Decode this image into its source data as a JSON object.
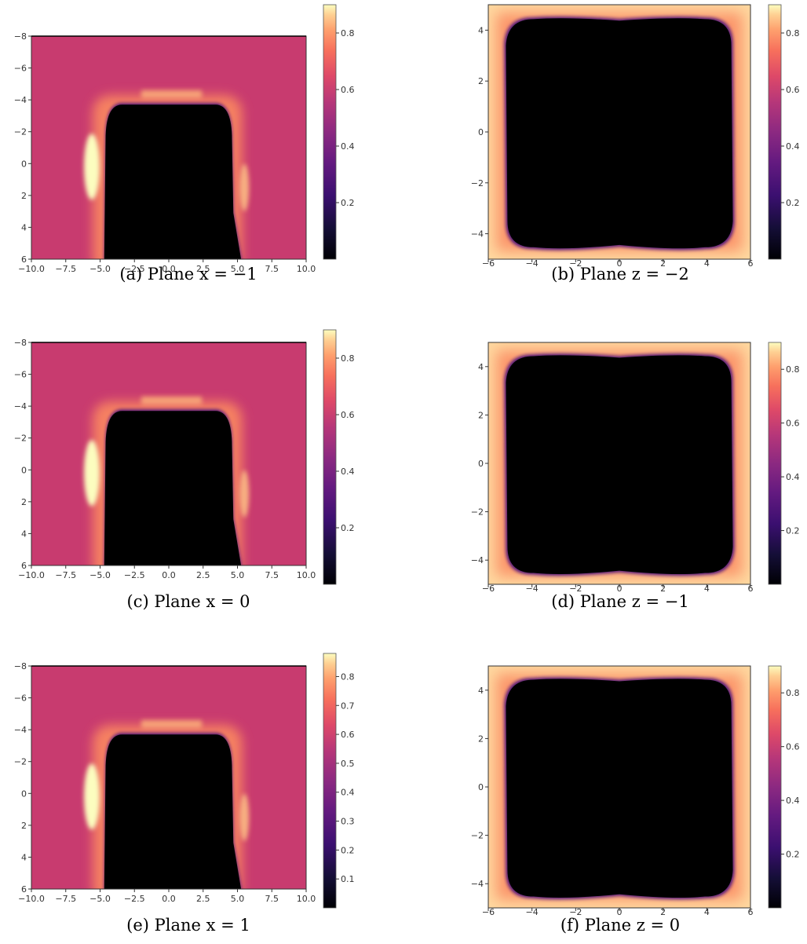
{
  "chart_data": [
    {
      "type": "heatmap",
      "caption": "(a) Plane x = −1",
      "xticks": [
        "−10.0",
        "−7.5",
        "−5.0",
        "−2.5",
        "0.0",
        "2.5",
        "5.0",
        "7.5",
        "10.0"
      ],
      "yticks": [
        "−8",
        "−6",
        "−4",
        "−2",
        "0",
        "2",
        "4",
        "6"
      ],
      "xlim": [
        -10,
        10
      ],
      "ylim": [
        -8,
        6
      ],
      "colorbar_ticks": [
        "0.2",
        "0.4",
        "0.6",
        "0.8"
      ],
      "colorbar_range": [
        0,
        0.9
      ],
      "colormap": "magma"
    },
    {
      "type": "heatmap",
      "caption": "(b) Plane z = −2",
      "xticks": [
        "−6",
        "−4",
        "−2",
        "0",
        "2",
        "4",
        "6"
      ],
      "yticks": [
        "4",
        "2",
        "0",
        "−2",
        "−4"
      ],
      "xlim": [
        -6,
        6
      ],
      "ylim": [
        -5,
        5
      ],
      "colorbar_ticks": [
        "0.2",
        "0.4",
        "0.6",
        "0.8"
      ],
      "colorbar_range": [
        0,
        0.9
      ],
      "colormap": "magma"
    },
    {
      "type": "heatmap",
      "caption": "(c) Plane x = 0",
      "xticks": [
        "−10.0",
        "−7.5",
        "−5.0",
        "−2.5",
        "0.0",
        "2.5",
        "5.0",
        "7.5",
        "10.0"
      ],
      "yticks": [
        "−8",
        "−6",
        "−4",
        "−2",
        "0",
        "2",
        "4",
        "6"
      ],
      "xlim": [
        -10,
        10
      ],
      "ylim": [
        -8,
        6
      ],
      "colorbar_ticks": [
        "0.2",
        "0.4",
        "0.6",
        "0.8"
      ],
      "colorbar_range": [
        0,
        0.9
      ],
      "colormap": "magma"
    },
    {
      "type": "heatmap",
      "caption": "(d) Plane z = −1",
      "xticks": [
        "−6",
        "−4",
        "−2",
        "0",
        "2",
        "4",
        "6"
      ],
      "yticks": [
        "4",
        "2",
        "0",
        "−2",
        "−4"
      ],
      "xlim": [
        -6,
        6
      ],
      "ylim": [
        -5,
        5
      ],
      "colorbar_ticks": [
        "0.2",
        "0.4",
        "0.6",
        "0.8"
      ],
      "colorbar_range": [
        0,
        0.9
      ],
      "colormap": "magma"
    },
    {
      "type": "heatmap",
      "caption": "(e) Plane x = 1",
      "xticks": [
        "−10.0",
        "−7.5",
        "−5.0",
        "−2.5",
        "0.0",
        "2.5",
        "5.0",
        "7.5",
        "10.0"
      ],
      "yticks": [
        "−8",
        "−6",
        "−4",
        "−2",
        "0",
        "2",
        "4",
        "6"
      ],
      "xlim": [
        -10,
        10
      ],
      "ylim": [
        -8,
        6
      ],
      "colorbar_ticks": [
        "0.1",
        "0.2",
        "0.3",
        "0.4",
        "0.5",
        "0.6",
        "0.7",
        "0.8"
      ],
      "colorbar_range": [
        0,
        0.88
      ],
      "colormap": "magma"
    },
    {
      "type": "heatmap",
      "caption": "(f) Plane z = 0",
      "xticks": [
        "−6",
        "−4",
        "−2",
        "0",
        "2",
        "4",
        "6"
      ],
      "yticks": [
        "4",
        "2",
        "0",
        "−2",
        "−4"
      ],
      "xlim": [
        -6,
        6
      ],
      "ylim": [
        -5,
        5
      ],
      "colorbar_ticks": [
        "0.2",
        "0.4",
        "0.6",
        "0.8"
      ],
      "colorbar_range": [
        0,
        0.9
      ],
      "colormap": "magma"
    }
  ],
  "colors": {
    "background_field": "#c83b6f",
    "interior": "#000000",
    "glow_core": "#fcfdbf",
    "glow_mid": "#fb8861",
    "edge_purple": "#51127c"
  }
}
